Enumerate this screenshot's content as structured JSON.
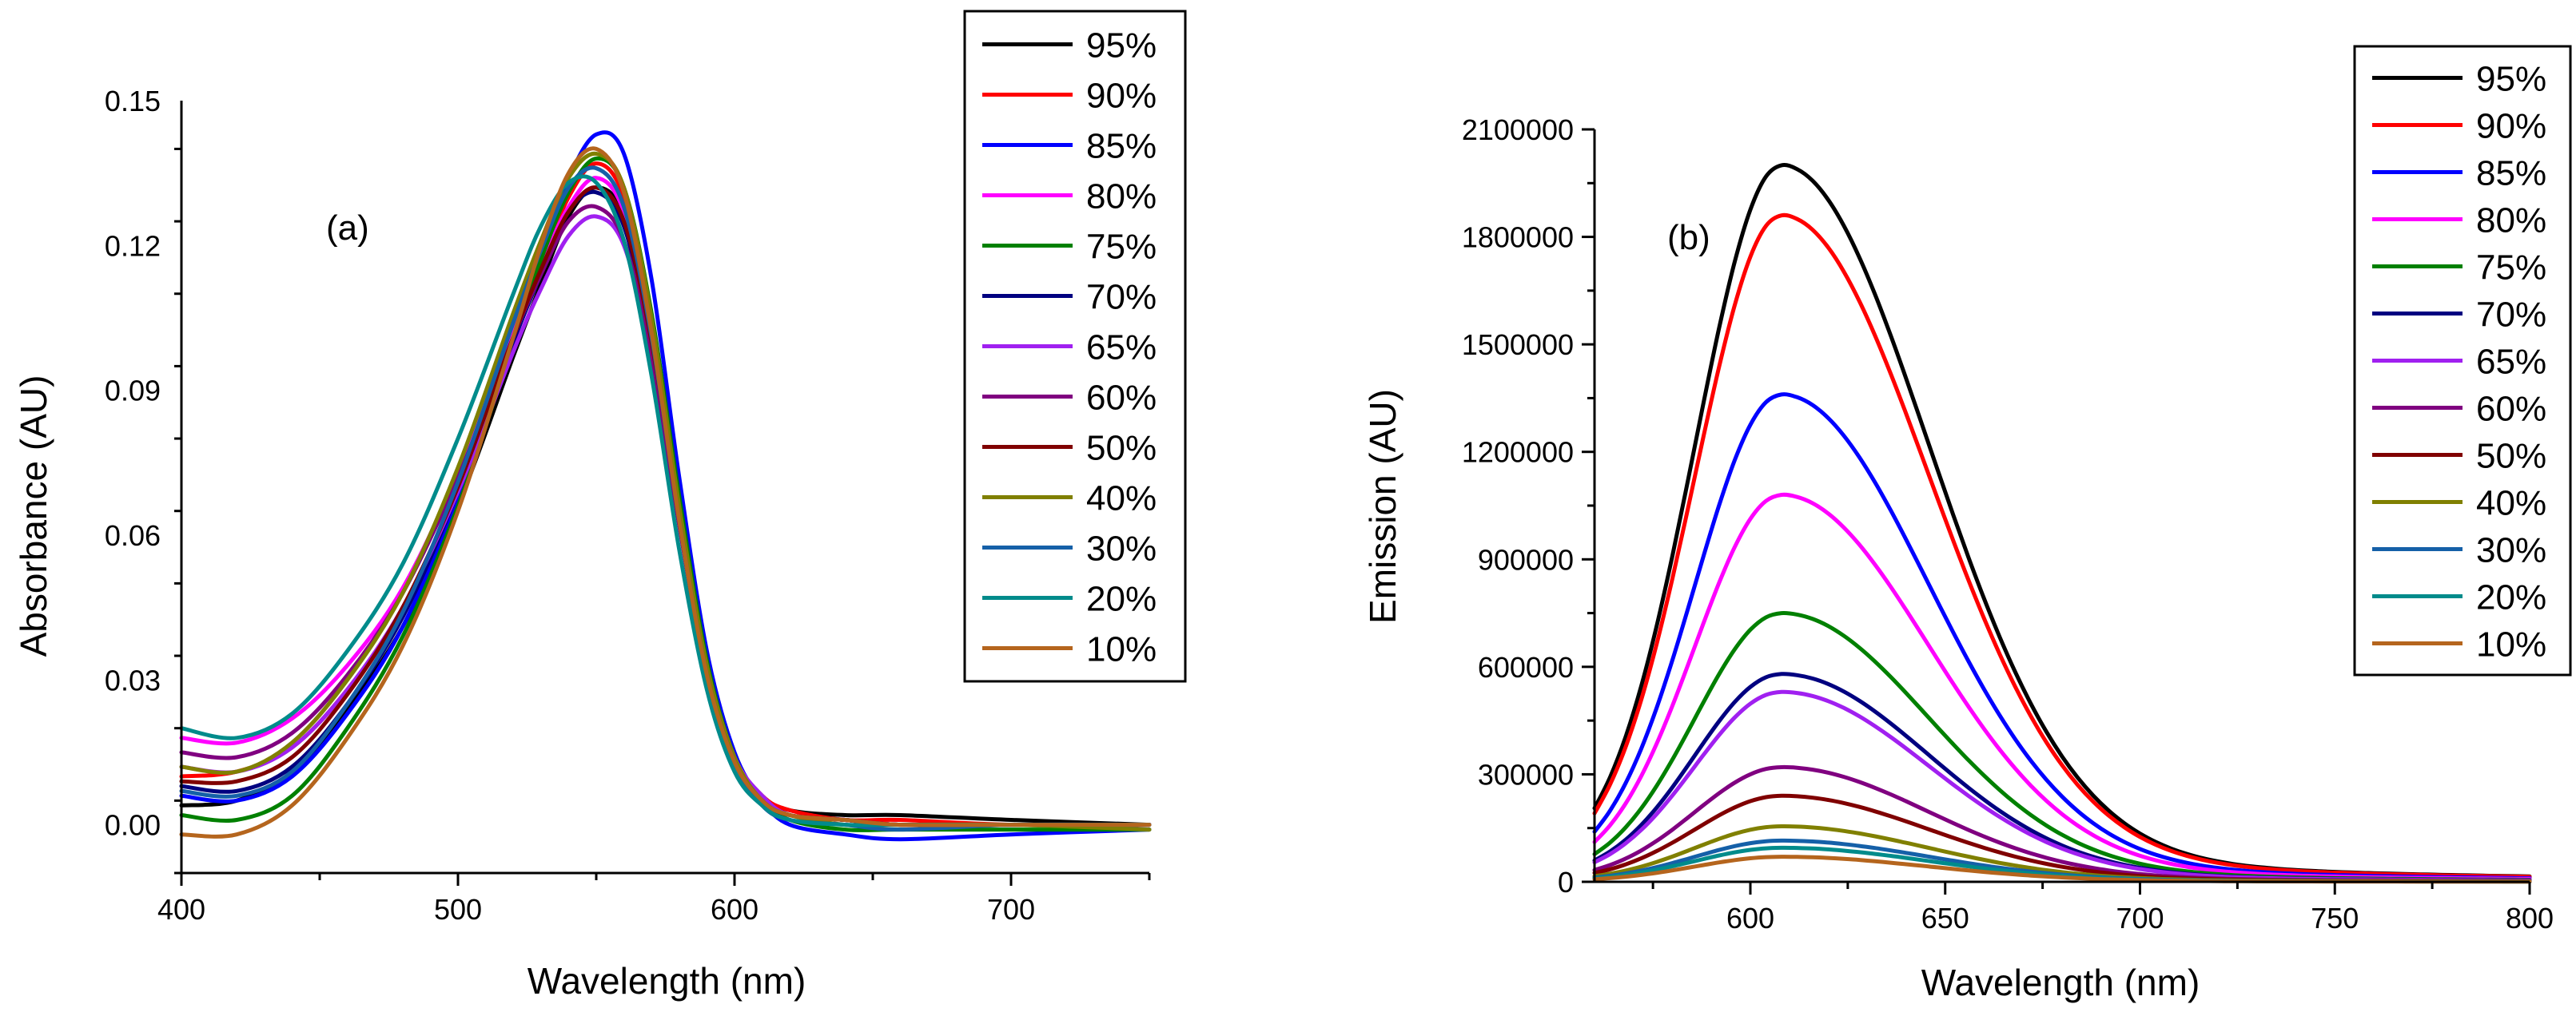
{
  "chart_data": [
    {
      "type": "line",
      "panel_label": "(a)",
      "xlabel": "Wavelength (nm)",
      "ylabel": "Absorbance (AU)",
      "xlim": [
        400,
        750
      ],
      "ylim": [
        -0.01,
        0.15
      ],
      "xticks": [
        400,
        500,
        600,
        700
      ],
      "xtick_labels": [
        "400",
        "500",
        "600",
        "700"
      ],
      "yticks": [
        0.0,
        0.03,
        0.06,
        0.09,
        0.12,
        0.15
      ],
      "ytick_labels": [
        "0.00",
        "0.03",
        "0.06",
        "0.09",
        "0.12",
        "0.15"
      ],
      "grid": false,
      "legend_position": "top-right",
      "x": [
        400,
        420,
        440,
        460,
        480,
        500,
        520,
        530,
        540,
        550,
        560,
        570,
        580,
        590,
        600,
        610,
        620,
        640,
        660,
        700,
        750
      ],
      "series": [
        {
          "name": "95%",
          "color": "#000000",
          "values": [
            0.004,
            0.005,
            0.011,
            0.024,
            0.041,
            0.066,
            0.097,
            0.112,
            0.126,
            0.132,
            0.126,
            0.1,
            0.064,
            0.032,
            0.014,
            0.006,
            0.003,
            0.002,
            0.002,
            0.001,
            0.0
          ]
        },
        {
          "name": "90%",
          "color": "#ff0000",
          "values": [
            0.01,
            0.011,
            0.016,
            0.028,
            0.045,
            0.07,
            0.101,
            0.116,
            0.13,
            0.137,
            0.13,
            0.104,
            0.066,
            0.033,
            0.014,
            0.006,
            0.003,
            0.001,
            0.001,
            0.0,
            0.0
          ]
        },
        {
          "name": "85%",
          "color": "#0000ff",
          "values": [
            0.006,
            0.005,
            0.01,
            0.023,
            0.041,
            0.068,
            0.102,
            0.119,
            0.134,
            0.143,
            0.139,
            0.113,
            0.072,
            0.036,
            0.015,
            0.005,
            0.0,
            -0.002,
            -0.003,
            -0.002,
            -0.001
          ]
        },
        {
          "name": "80%",
          "color": "#ff00ff",
          "values": [
            0.018,
            0.017,
            0.022,
            0.033,
            0.049,
            0.073,
            0.102,
            0.116,
            0.128,
            0.134,
            0.127,
            0.102,
            0.066,
            0.033,
            0.014,
            0.006,
            0.002,
            0.001,
            0.0,
            0.0,
            0.0
          ]
        },
        {
          "name": "75%",
          "color": "#008000",
          "values": [
            0.002,
            0.001,
            0.006,
            0.02,
            0.039,
            0.066,
            0.1,
            0.117,
            0.131,
            0.138,
            0.132,
            0.106,
            0.068,
            0.034,
            0.014,
            0.005,
            0.001,
            -0.001,
            -0.001,
            -0.001,
            -0.001
          ]
        },
        {
          "name": "70%",
          "color": "#000080",
          "values": [
            0.008,
            0.007,
            0.012,
            0.025,
            0.043,
            0.069,
            0.1,
            0.114,
            0.127,
            0.131,
            0.124,
            0.099,
            0.063,
            0.031,
            0.013,
            0.005,
            0.002,
            0.001,
            0.0,
            0.0,
            0.0
          ]
        },
        {
          "name": "65%",
          "color": "#a020f0",
          "values": [
            0.012,
            0.011,
            0.016,
            0.028,
            0.045,
            0.069,
            0.098,
            0.111,
            0.122,
            0.126,
            0.12,
            0.097,
            0.063,
            0.032,
            0.014,
            0.006,
            0.002,
            0.001,
            0.0,
            0.0,
            0.0
          ]
        },
        {
          "name": "60%",
          "color": "#800080",
          "values": [
            0.015,
            0.014,
            0.019,
            0.031,
            0.048,
            0.072,
            0.101,
            0.114,
            0.125,
            0.128,
            0.121,
            0.097,
            0.062,
            0.031,
            0.013,
            0.005,
            0.002,
            0.001,
            0.0,
            0.0,
            0.0
          ]
        },
        {
          "name": "50%",
          "color": "#800000",
          "values": [
            0.009,
            0.009,
            0.014,
            0.027,
            0.045,
            0.07,
            0.101,
            0.115,
            0.127,
            0.132,
            0.125,
            0.1,
            0.064,
            0.032,
            0.013,
            0.005,
            0.002,
            0.001,
            0.0,
            0.0,
            0.0
          ]
        },
        {
          "name": "40%",
          "color": "#808000",
          "values": [
            0.012,
            0.011,
            0.017,
            0.03,
            0.048,
            0.074,
            0.106,
            0.121,
            0.134,
            0.139,
            0.132,
            0.105,
            0.066,
            0.033,
            0.014,
            0.005,
            0.002,
            0.0,
            0.0,
            0.0,
            -0.001
          ]
        },
        {
          "name": "30%",
          "color": "#1560a8",
          "values": [
            0.007,
            0.006,
            0.011,
            0.025,
            0.044,
            0.071,
            0.104,
            0.119,
            0.132,
            0.136,
            0.128,
            0.101,
            0.063,
            0.031,
            0.013,
            0.004,
            0.001,
            0.0,
            -0.001,
            0.0,
            0.0
          ]
        },
        {
          "name": "20%",
          "color": "#008b8b",
          "values": [
            0.02,
            0.018,
            0.023,
            0.036,
            0.054,
            0.08,
            0.11,
            0.124,
            0.133,
            0.133,
            0.121,
            0.093,
            0.057,
            0.028,
            0.011,
            0.004,
            0.001,
            0.0,
            0.0,
            0.0,
            0.0
          ]
        },
        {
          "name": "10%",
          "color": "#b5651d",
          "values": [
            -0.002,
            -0.002,
            0.004,
            0.018,
            0.037,
            0.065,
            0.101,
            0.12,
            0.135,
            0.14,
            0.131,
            0.102,
            0.063,
            0.031,
            0.013,
            0.005,
            0.002,
            0.001,
            0.0,
            0.0,
            0.0
          ]
        }
      ]
    },
    {
      "type": "line",
      "panel_label": "(b)",
      "xlabel": "Wavelength (nm)",
      "ylabel": "Emission (AU)",
      "xlim": [
        560,
        800
      ],
      "ylim": [
        0,
        2100000
      ],
      "xticks": [
        600,
        650,
        700,
        750,
        800
      ],
      "xtick_labels": [
        "600",
        "650",
        "700",
        "750",
        "800"
      ],
      "yticks": [
        0,
        300000,
        600000,
        900000,
        1200000,
        1500000,
        1800000,
        2100000
      ],
      "ytick_labels": [
        "0",
        "300000",
        "600000",
        "900000",
        "1200000",
        "1500000",
        "1800000",
        "2100000"
      ],
      "grid": false,
      "legend_position": "top-right",
      "peak_wavelength": 608,
      "series": [
        {
          "name": "95%",
          "color": "#000000",
          "peak": 2000000
        },
        {
          "name": "90%",
          "color": "#ff0000",
          "peak": 1860000
        },
        {
          "name": "85%",
          "color": "#0000ff",
          "peak": 1360000
        },
        {
          "name": "80%",
          "color": "#ff00ff",
          "peak": 1080000
        },
        {
          "name": "75%",
          "color": "#008000",
          "peak": 750000
        },
        {
          "name": "70%",
          "color": "#000080",
          "peak": 580000
        },
        {
          "name": "65%",
          "color": "#a020f0",
          "peak": 530000
        },
        {
          "name": "60%",
          "color": "#800080",
          "peak": 320000
        },
        {
          "name": "50%",
          "color": "#800000",
          "peak": 240000
        },
        {
          "name": "40%",
          "color": "#808000",
          "peak": 155000
        },
        {
          "name": "30%",
          "color": "#1560a8",
          "peak": 115000
        },
        {
          "name": "20%",
          "color": "#008b8b",
          "peak": 95000
        },
        {
          "name": "10%",
          "color": "#b5651d",
          "peak": 70000
        }
      ]
    }
  ]
}
